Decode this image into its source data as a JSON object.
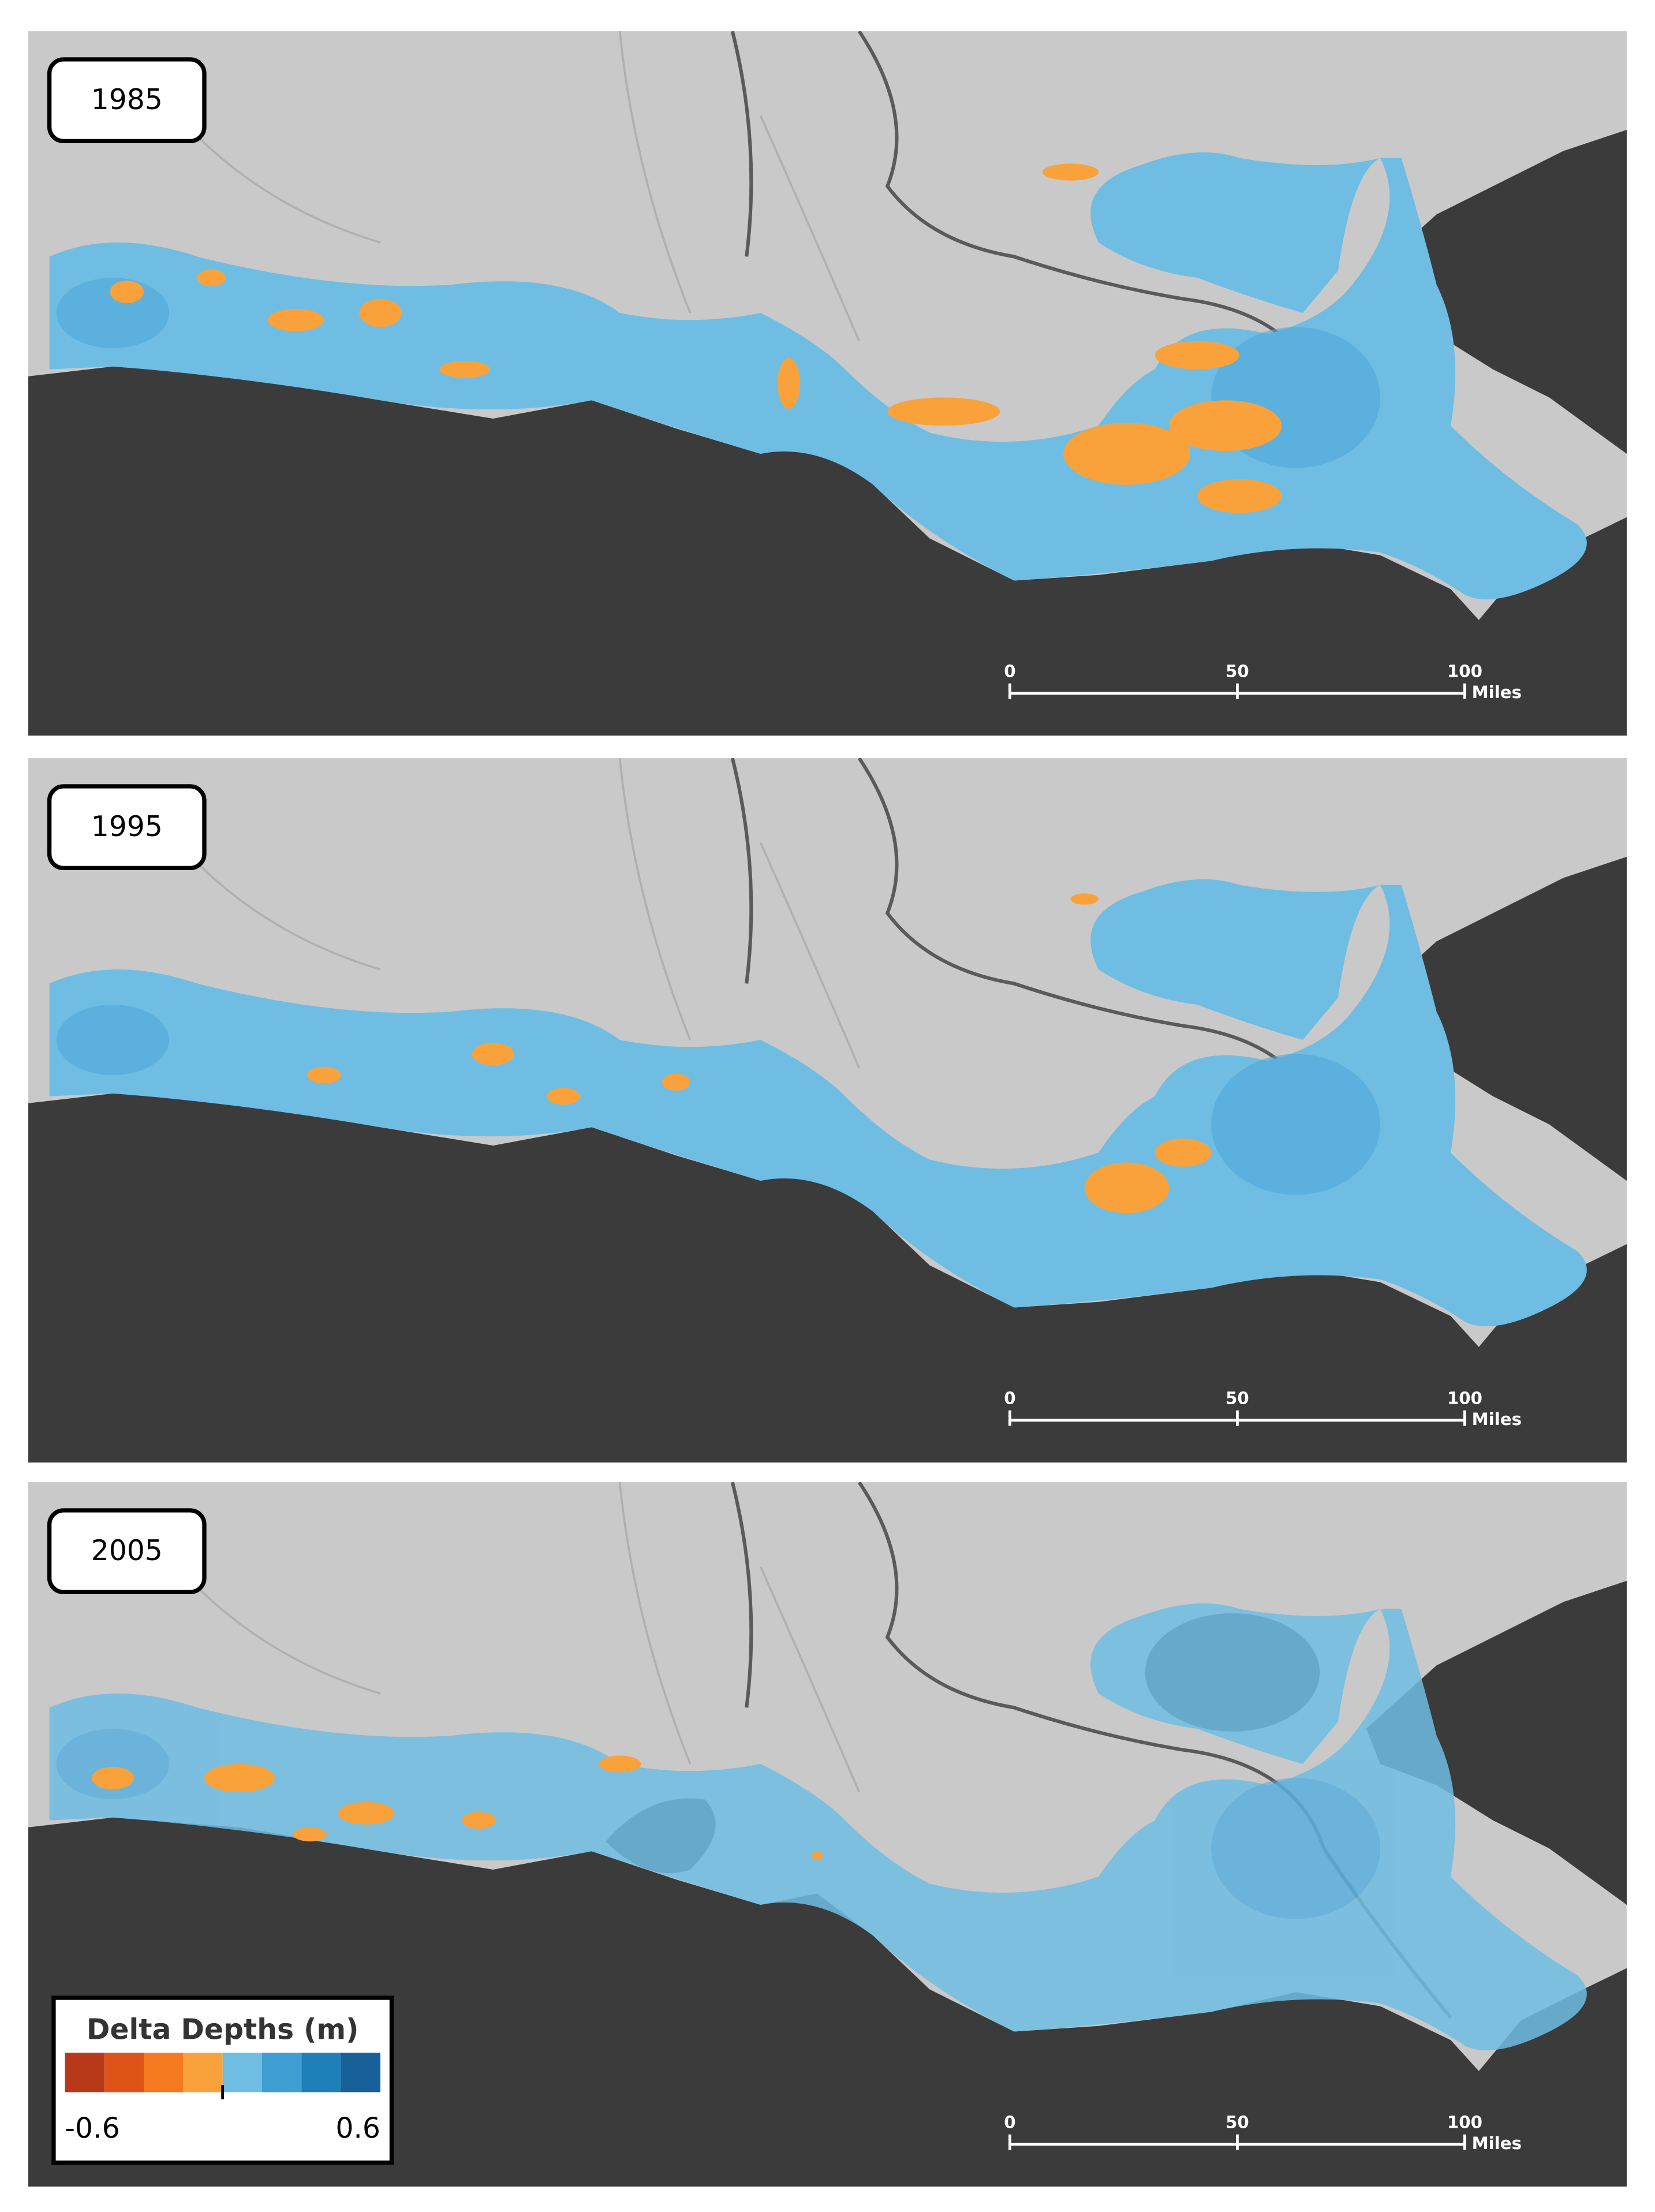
{
  "panels": [
    {
      "label": "1985",
      "scale": {
        "ticks": [
          0,
          50,
          100
        ],
        "unit": "Miles"
      }
    },
    {
      "label": "1995",
      "scale": {
        "ticks": [
          0,
          50,
          100
        ],
        "unit": "Miles"
      }
    },
    {
      "label": "2005",
      "scale": {
        "ticks": [
          0,
          50,
          100
        ],
        "unit": "Miles"
      }
    }
  ],
  "legend": {
    "title": "Delta Depths (m)",
    "min": -0.6,
    "max": 0.6,
    "colors": [
      "#b8391a",
      "#de5418",
      "#f57a1f",
      "#f9a23c",
      "#6fbde3",
      "#3f9fd2",
      "#1f7fb8",
      "#17609a"
    ]
  }
}
